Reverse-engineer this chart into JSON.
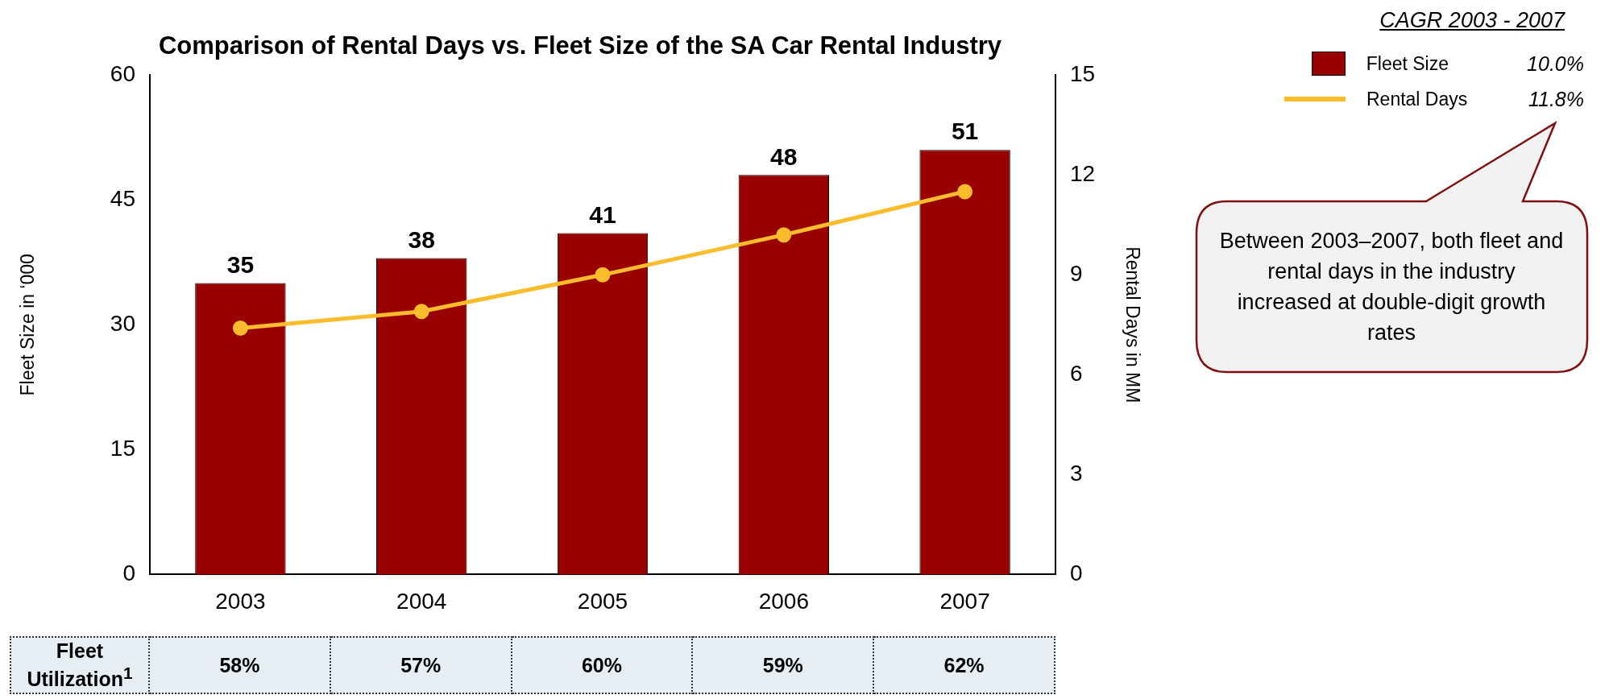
{
  "chart_data": {
    "type": "bar",
    "title": "Comparison of Rental Days vs. Fleet Size of the SA Car Rental Industry",
    "categories": [
      "2003",
      "2004",
      "2005",
      "2006",
      "2007"
    ],
    "series": [
      {
        "name": "Fleet Size",
        "color": "#990000",
        "values": [
          35,
          38,
          41,
          48,
          51
        ],
        "value_labels": [
          "35",
          "38",
          "41",
          "48",
          "51"
        ]
      },
      {
        "name": "Rental Days",
        "type": "line",
        "axis": "y2",
        "color": "#fbbc2c",
        "marker": "circle",
        "values": [
          7.4,
          7.9,
          9.0,
          10.2,
          11.5
        ]
      }
    ],
    "ylabel": "Fleet Size in ‘000",
    "y2label": "Rental Days in MM",
    "ylim": [
      0,
      60
    ],
    "yticks": [
      0,
      15,
      30,
      45,
      60
    ],
    "y2lim": [
      0,
      15
    ],
    "y2ticks": [
      0,
      3,
      6,
      9,
      12,
      15
    ],
    "grid": false,
    "legend": "right",
    "legend_title": "CAGR 2003 - 2007",
    "annotations": [
      "10.0%",
      "11.8%",
      "Between 2003–2007, both fleet and rental days in the industry increased at double-digit growth rates",
      "Fleet Utilization$^{1}$",
      "58%",
      "57%",
      "60%",
      "59%",
      "62%"
    ]
  }
}
